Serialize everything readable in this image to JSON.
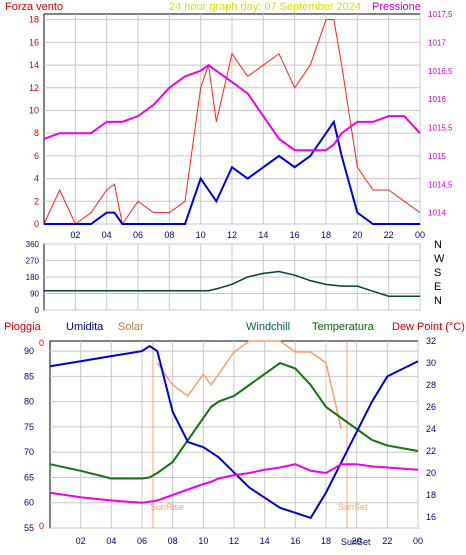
{
  "panel_top": {
    "title": "24 hour graph day:  07 September 2024",
    "left_label": "Forza vento",
    "right_label": "Pressione",
    "x_ticks": [
      "02",
      "04",
      "06",
      "08",
      "10",
      "12",
      "14",
      "16",
      "18",
      "20",
      "22",
      "00"
    ],
    "left_ticks": [
      "0",
      "2",
      "4",
      "6",
      "8",
      "10",
      "12",
      "14",
      "16",
      "18"
    ],
    "right_ticks": [
      "1014",
      "1014,5",
      "1015",
      "1015,5",
      "1016",
      "1016,5",
      "1017",
      "1017,5"
    ]
  },
  "panel_wind_dir": {
    "left_ticks": [
      "0",
      "90",
      "180",
      "270",
      "360"
    ],
    "compass": [
      "N",
      "W",
      "S",
      "E",
      "N"
    ]
  },
  "panel_bottom": {
    "legend": [
      {
        "label": "Pioggia",
        "color": "#cc0000"
      },
      {
        "label": "Umidita",
        "color": "#000080"
      },
      {
        "label": "Solar",
        "color": "#b08040"
      },
      {
        "label": "Windchill",
        "color": "#006060"
      },
      {
        "label": "Temperatura",
        "color": "#006600"
      },
      {
        "label": "Dew Point (°C)",
        "color": "#cc0000"
      }
    ],
    "left_ticks": [
      "55",
      "60",
      "65",
      "70",
      "75",
      "80",
      "85",
      "90"
    ],
    "right_ticks": [
      "16",
      "18",
      "20",
      "22",
      "24",
      "26",
      "28",
      "30",
      "32"
    ],
    "x_ticks": [
      "02",
      "04",
      "06",
      "08",
      "10",
      "12",
      "14",
      "16",
      "18",
      "20",
      "22",
      "00"
    ],
    "rain_top_label": "0",
    "rain_bottom_label": "0",
    "sunrise_label": "SunRise",
    "sunset_label": "SunSet"
  },
  "colors": {
    "wind_gust": "#ff2020",
    "wind_avg": "#0000dd",
    "pressure": "#ee00ee",
    "direction": "#004040",
    "humidity": "#0000cc",
    "temperature": "#117711",
    "solar": "#f4a070",
    "dewpoint": "#ee00ee",
    "grid": "#c8c8c8",
    "title": "#dddd00",
    "axis_text": "#000080"
  },
  "chart_data": [
    {
      "type": "line",
      "title": "24 hour graph day:  07 September 2024",
      "x_hours": [
        0,
        1,
        2,
        3,
        4,
        4.5,
        5,
        6,
        7,
        8,
        9,
        10,
        10.5,
        11,
        12,
        13,
        14,
        15,
        16,
        17,
        18,
        18.5,
        19,
        20,
        21,
        22,
        23,
        24
      ],
      "series": [
        {
          "name": "Forza vento",
          "values": [
            0,
            3,
            0,
            1,
            3,
            3.5,
            0,
            2,
            1,
            1,
            2,
            12,
            14,
            9,
            15,
            13,
            14,
            15,
            12,
            14,
            18,
            18,
            14,
            5,
            3,
            3,
            2,
            1
          ]
        },
        {
          "name": "Pressione",
          "values": [
            1015.3,
            1015.4,
            1015.4,
            1015.4,
            1015.6,
            1015.6,
            1015.6,
            1015.7,
            1015.9,
            1016.2,
            1016.4,
            1016.5,
            1016.6,
            1016.5,
            1016.3,
            1016.1,
            1015.7,
            1015.3,
            1015.1,
            1015.1,
            1015.1,
            1015.2,
            1015.4,
            1015.6,
            1015.6,
            1015.7,
            1015.7,
            1015.4
          ]
        }
      ],
      "avg_wind": [
        0,
        0,
        0,
        0,
        1,
        1,
        0,
        0,
        0,
        0,
        0,
        4,
        3,
        2,
        5,
        4,
        5,
        6,
        5,
        6,
        8,
        9,
        6,
        1,
        0,
        0,
        0,
        0
      ],
      "ylim_left": [
        0,
        18.5
      ],
      "ylim_right": [
        1013.8,
        1017.5
      ]
    },
    {
      "type": "line",
      "x_hours": [
        0,
        6,
        10,
        10.5,
        11,
        12,
        13,
        14,
        15,
        16,
        17,
        18,
        19,
        20,
        22,
        24
      ],
      "series": [
        {
          "values": [
            105,
            105,
            105,
            105,
            115,
            140,
            180,
            200,
            210,
            190,
            160,
            140,
            130,
            130,
            75,
            75
          ]
        }
      ],
      "ylim": [
        0,
        360
      ]
    },
    {
      "type": "line",
      "x_hours": [
        0,
        2,
        4,
        6,
        6.5,
        7,
        8,
        9,
        10,
        10.5,
        11,
        12,
        13,
        14,
        15,
        16,
        17,
        18,
        19,
        20,
        21,
        22,
        24
      ],
      "series": [
        {
          "name": "Umidita",
          "values": [
            87,
            88,
            89,
            90,
            91,
            90,
            78,
            72,
            71,
            70,
            69,
            66,
            63,
            61,
            59,
            58,
            57,
            62,
            68,
            74,
            80,
            85,
            88
          ]
        },
        {
          "name": "Temperatura",
          "values": [
            20.8,
            20.2,
            19.5,
            19.5,
            19.6,
            20,
            21,
            23,
            25,
            26,
            26.5,
            27,
            28,
            29,
            30,
            29.5,
            28,
            26,
            25,
            24,
            23,
            22.5,
            22
          ]
        },
        {
          "name": "Solar",
          "values": [
            null,
            null,
            null,
            null,
            null,
            30,
            28,
            27,
            29,
            28,
            29,
            31,
            32,
            32,
            32,
            31,
            31,
            30,
            24,
            null,
            null,
            null,
            null
          ]
        },
        {
          "name": "Dew Point (°C)",
          "values": [
            18.2,
            17.8,
            17.5,
            17.3,
            17.4,
            17.5,
            18.0,
            18.5,
            19.0,
            19.2,
            19.5,
            19.8,
            20.0,
            20.3,
            20.5,
            20.8,
            20.2,
            20.0,
            20.8,
            20.8,
            20.6,
            20.5,
            20.3
          ]
        }
      ],
      "ylim_left": [
        55,
        92
      ],
      "ylim_right": [
        15,
        32
      ]
    }
  ]
}
